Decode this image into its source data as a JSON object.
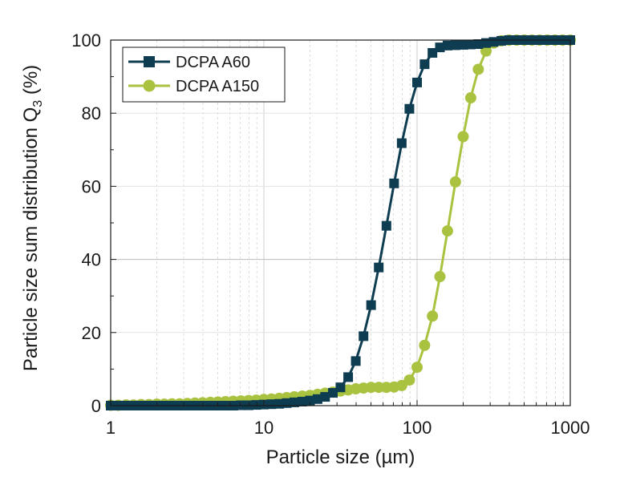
{
  "chart_data": {
    "type": "line",
    "title": "",
    "xlabel": "Particle size (µm)",
    "ylabel": "Particle size sum distribution Q",
    "ylabel_sub": "3",
    "ylabel_suffix": " (%)",
    "x_scale": "log",
    "xlim": [
      1,
      1000
    ],
    "ylim": [
      0,
      100
    ],
    "x_ticks": [
      1,
      10,
      100,
      1000
    ],
    "x_tick_labels": [
      "1",
      "10",
      "100",
      "1000"
    ],
    "y_ticks": [
      0,
      20,
      40,
      60,
      80,
      100
    ],
    "y_tick_labels": [
      "0",
      "20",
      "40",
      "60",
      "80",
      "100"
    ],
    "grid": true,
    "legend_position": "top-left",
    "series": [
      {
        "name": "DCPA A60",
        "color": "#0e3d52",
        "marker": "square",
        "x": [
          1.0,
          1.12,
          1.26,
          1.41,
          1.58,
          1.78,
          2.0,
          2.24,
          2.51,
          2.82,
          3.16,
          3.55,
          3.98,
          4.47,
          5.01,
          5.62,
          6.31,
          7.08,
          7.94,
          8.91,
          10.0,
          11.2,
          12.6,
          14.1,
          15.8,
          17.8,
          20.0,
          22.4,
          25.1,
          28.2,
          31.6,
          35.5,
          39.8,
          44.7,
          50.1,
          56.2,
          63.1,
          70.8,
          79.4,
          89.1,
          100,
          112,
          126,
          141,
          158,
          178,
          200,
          224,
          251,
          282,
          316,
          355,
          398,
          447,
          501,
          562,
          631,
          708,
          794,
          891,
          1000
        ],
        "y": [
          0,
          0,
          0,
          0,
          0,
          0,
          0,
          0,
          0,
          0,
          0,
          0,
          0,
          0,
          0,
          0,
          0,
          0.1,
          0.1,
          0.2,
          0.3,
          0.4,
          0.5,
          0.7,
          0.9,
          1.1,
          1.4,
          1.8,
          2.4,
          3.5,
          5.0,
          7.8,
          12.2,
          19.0,
          27.5,
          37.8,
          49.2,
          60.8,
          71.8,
          81.2,
          88.4,
          93.4,
          96.5,
          98.0,
          98.5,
          98.6,
          98.7,
          98.8,
          98.9,
          99.2,
          99.5,
          99.8,
          100,
          100,
          100,
          100,
          100,
          100,
          100,
          100,
          100
        ]
      },
      {
        "name": "DCPA A150",
        "color": "#a9c23f",
        "marker": "circle",
        "x": [
          1.0,
          1.12,
          1.26,
          1.41,
          1.58,
          1.78,
          2.0,
          2.24,
          2.51,
          2.82,
          3.16,
          3.55,
          3.98,
          4.47,
          5.01,
          5.62,
          6.31,
          7.08,
          7.94,
          8.91,
          10.0,
          11.2,
          12.6,
          14.1,
          15.8,
          17.8,
          20.0,
          22.4,
          25.1,
          28.2,
          31.6,
          35.5,
          39.8,
          44.7,
          50.1,
          56.2,
          63.1,
          70.8,
          79.4,
          89.1,
          100,
          112,
          126,
          141,
          158,
          178,
          200,
          224,
          251,
          282,
          316,
          355,
          398,
          447,
          501,
          562,
          631,
          708,
          794,
          891,
          1000
        ],
        "y": [
          0.1,
          0.1,
          0.2,
          0.2,
          0.3,
          0.3,
          0.4,
          0.4,
          0.5,
          0.5,
          0.6,
          0.7,
          0.8,
          0.9,
          1.0,
          1.1,
          1.2,
          1.3,
          1.4,
          1.5,
          1.7,
          1.8,
          2.0,
          2.2,
          2.4,
          2.6,
          2.8,
          3.1,
          3.4,
          3.7,
          4.0,
          4.3,
          4.6,
          4.8,
          5.0,
          5.0,
          5.0,
          5.1,
          5.5,
          7.0,
          10.5,
          16.5,
          24.5,
          35.3,
          47.8,
          61.2,
          73.6,
          84.2,
          92.0,
          97.0,
          99.2,
          99.8,
          100,
          100,
          100,
          100,
          100,
          100,
          100,
          100,
          100
        ]
      }
    ]
  }
}
